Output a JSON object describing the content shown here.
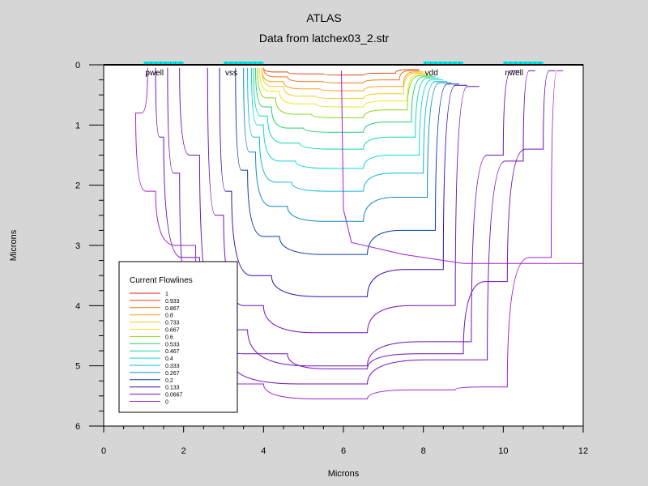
{
  "chart_data": {
    "type": "contour",
    "title": "ATLAS",
    "subtitle": "Data from latchex03_2.str",
    "xlabel": "Microns",
    "ylabel": "Microns",
    "xlim": [
      0,
      12
    ],
    "ylim": [
      0,
      6
    ],
    "y_inverted": true,
    "x_ticks": [
      "0",
      "2",
      "4",
      "6",
      "8",
      "10",
      "12"
    ],
    "y_ticks": [
      "0",
      "1",
      "2",
      "3",
      "4",
      "5",
      "6"
    ],
    "grid": false,
    "electrodes": [
      {
        "name": "pwell",
        "x": [
          1.0,
          2.0
        ],
        "color": "#00e5e5"
      },
      {
        "name": "vss",
        "x": [
          3.0,
          4.0
        ],
        "color": "#00e5e5"
      },
      {
        "name": "vdd",
        "x": [
          8.0,
          9.0
        ],
        "color": "#00e5e5"
      },
      {
        "name": "nwell",
        "x": [
          10.0,
          11.0
        ],
        "color": "#00e5e5"
      }
    ],
    "legend": {
      "title": "Current Flowlines",
      "placement": "bottom-left",
      "entries": [
        {
          "label": "1",
          "color": "#d42020"
        },
        {
          "label": "0.933",
          "color": "#e04818"
        },
        {
          "label": "0.867",
          "color": "#ec7818"
        },
        {
          "label": "0.8",
          "color": "#f4a020"
        },
        {
          "label": "0.733",
          "color": "#f4cc20"
        },
        {
          "label": "0.667",
          "color": "#e8e820"
        },
        {
          "label": "0.6",
          "color": "#88d818"
        },
        {
          "label": "0.533",
          "color": "#20d070"
        },
        {
          "label": "0.467",
          "color": "#10d8b0"
        },
        {
          "label": "0.4",
          "color": "#10d8d8"
        },
        {
          "label": "0.333",
          "color": "#10b8d8"
        },
        {
          "label": "0.267",
          "color": "#1088c8"
        },
        {
          "label": "0.2",
          "color": "#0840a8"
        },
        {
          "label": "0.133",
          "color": "#380ca8"
        },
        {
          "label": "0.0667",
          "color": "#7010b8"
        },
        {
          "label": "0",
          "color": "#a020d0"
        }
      ]
    },
    "flowlines": [
      {
        "value": 0.933,
        "x": [
          4.0,
          4.6,
          5.5,
          6.5,
          7.3,
          7.9
        ],
        "y": [
          0.05,
          0.12,
          0.15,
          0.17,
          0.14,
          0.08
        ]
      },
      {
        "value": 0.867,
        "x": [
          4.0,
          4.6,
          5.5,
          6.5,
          7.4,
          7.9
        ],
        "y": [
          0.05,
          0.2,
          0.28,
          0.3,
          0.25,
          0.1
        ]
      },
      {
        "value": 0.8,
        "x": [
          3.95,
          4.5,
          5.4,
          6.5,
          7.5,
          8.0
        ],
        "y": [
          0.05,
          0.28,
          0.4,
          0.43,
          0.36,
          0.12
        ]
      },
      {
        "value": 0.733,
        "x": [
          3.95,
          4.5,
          5.3,
          6.5,
          7.5,
          8.05
        ],
        "y": [
          0.05,
          0.36,
          0.52,
          0.56,
          0.48,
          0.14
        ]
      },
      {
        "value": 0.667,
        "x": [
          3.9,
          4.4,
          5.3,
          6.5,
          7.6,
          8.1
        ],
        "y": [
          0.05,
          0.44,
          0.65,
          0.7,
          0.6,
          0.16
        ]
      },
      {
        "value": 0.6,
        "x": [
          3.85,
          4.3,
          5.2,
          6.5,
          7.6,
          8.2
        ],
        "y": [
          0.05,
          0.55,
          0.82,
          0.88,
          0.75,
          0.18
        ]
      },
      {
        "value": 0.533,
        "x": [
          3.8,
          4.2,
          5.0,
          6.5,
          7.7,
          8.3
        ],
        "y": [
          0.05,
          0.7,
          1.05,
          1.12,
          0.95,
          0.2
        ]
      },
      {
        "value": 0.467,
        "x": [
          3.75,
          4.1,
          4.9,
          6.5,
          7.8,
          8.4
        ],
        "y": [
          0.05,
          0.85,
          1.3,
          1.4,
          1.2,
          0.22
        ]
      },
      {
        "value": 0.4,
        "x": [
          3.7,
          4.0,
          4.8,
          6.5,
          7.9,
          8.5
        ],
        "y": [
          0.05,
          1.0,
          1.6,
          1.72,
          1.5,
          0.25
        ]
      },
      {
        "value": 0.333,
        "x": [
          3.6,
          3.9,
          4.7,
          6.5,
          8.0,
          8.6
        ],
        "y": [
          0.05,
          1.2,
          1.95,
          2.1,
          1.8,
          0.28
        ]
      },
      {
        "value": 0.267,
        "x": [
          3.5,
          3.8,
          4.6,
          6.5,
          8.1,
          8.7
        ],
        "y": [
          0.05,
          1.45,
          2.35,
          2.6,
          2.2,
          0.3
        ]
      },
      {
        "value": 0.2,
        "x": [
          3.3,
          3.6,
          4.4,
          6.6,
          8.3,
          8.9
        ],
        "y": [
          0.05,
          1.75,
          2.85,
          3.15,
          2.75,
          0.32
        ]
      },
      {
        "value": 0.133,
        "x": [
          2.9,
          3.2,
          4.2,
          6.6,
          8.5,
          9.1
        ],
        "y": [
          0.05,
          2.1,
          3.5,
          3.85,
          3.4,
          0.34
        ]
      },
      {
        "value": 0.0667,
        "x": [
          2.6,
          3.0,
          4.0,
          6.6,
          8.8,
          9.4
        ],
        "y": [
          0.05,
          2.5,
          4.0,
          4.45,
          4.0,
          0.36
        ]
      },
      {
        "value": 0.0667,
        "x": [
          1.9,
          2.4,
          3.6,
          6.6,
          9.2,
          10.0,
          10.4
        ],
        "y": [
          0.05,
          1.5,
          4.4,
          5.0,
          4.6,
          1.5,
          0.1
        ]
      },
      {
        "value": 0.0667,
        "x": [
          1.6,
          1.9,
          3.2,
          6.6,
          9.6,
          10.5,
          10.8
        ],
        "y": [
          0.05,
          1.8,
          4.9,
          5.3,
          4.9,
          1.6,
          0.1
        ]
      },
      {
        "value": 0.0667,
        "x": [
          1.3,
          1.5,
          2.4,
          4.6,
          6.6,
          9.0,
          10.1,
          11.0,
          11.3
        ],
        "y": [
          0.05,
          1.2,
          3.2,
          4.8,
          5.05,
          4.8,
          3.6,
          1.4,
          0.1
        ]
      },
      {
        "value": 0,
        "x": [
          1.1,
          0.8,
          1.3,
          2.3,
          4.0,
          6.6,
          8.8,
          10.1,
          11.2,
          11.5
        ],
        "y": [
          0.05,
          0.8,
          2.1,
          3.0,
          5.3,
          5.55,
          5.4,
          5.35,
          3.2,
          0.1
        ]
      }
    ],
    "boundary_line": {
      "x": [
        5.95,
        6.0,
        6.2,
        7.5,
        9.0,
        12.0
      ],
      "y": [
        0.1,
        2.4,
        2.95,
        3.15,
        3.3,
        3.3
      ]
    }
  }
}
